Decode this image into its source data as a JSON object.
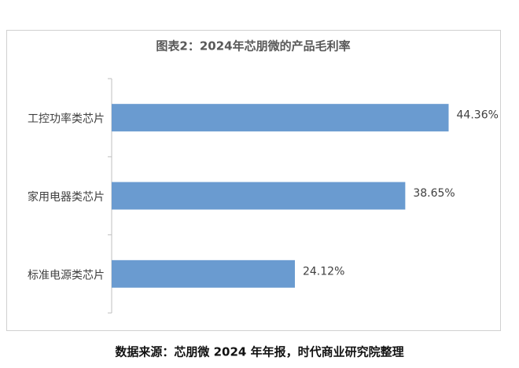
{
  "chart_data": {
    "type": "hbar",
    "title": "图表2：2024年芯朋微的产品毛利率",
    "categories": [
      "工控功率类芯片",
      "家用电器类芯片",
      "标准电源类芯片"
    ],
    "values": [
      44.36,
      38.65,
      24.12
    ],
    "value_labels": [
      "44.36%",
      "38.65%",
      "24.12%"
    ],
    "color": "#6a9bd0",
    "xlim": [
      0,
      50
    ]
  },
  "source": "数据来源：芯朋微 2024 年年报，时代商业研究院整理"
}
